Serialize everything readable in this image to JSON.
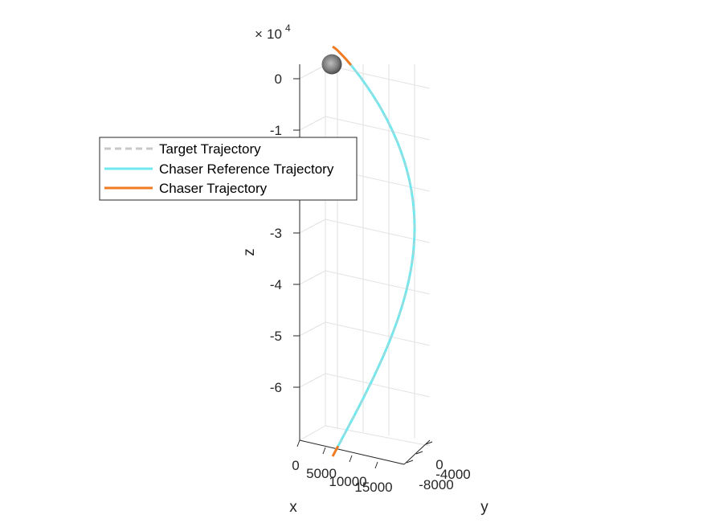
{
  "chart_data": {
    "type": "line",
    "projection": "3d",
    "title": "",
    "xlabel": "x",
    "ylabel": "y",
    "zlabel": "z",
    "z_exponent_label": "10",
    "z_exponent_power": "4",
    "z_exponent_prefix": "×",
    "x_ticks": [
      "0",
      "5000",
      "10000",
      "15000"
    ],
    "y_ticks": [
      "0",
      "-4000",
      "-8000"
    ],
    "z_ticks": [
      "0",
      "-1",
      "-2",
      "-3",
      "-4",
      "-5",
      "-6"
    ],
    "grid": true,
    "legend": {
      "placement": "left",
      "entries": [
        {
          "label": "Target Trajectory",
          "color": "#c8c8c8",
          "style": "dashed"
        },
        {
          "label": "Chaser Reference Trajectory",
          "color": "#6fe9ef",
          "style": "solid"
        },
        {
          "label": "Chaser Trajectory",
          "color": "#ef7b22",
          "style": "solid"
        }
      ]
    },
    "series": [
      {
        "name": "Chaser Reference Trajectory",
        "x": [
          200,
          900,
          2200,
          3800,
          5400,
          6900,
          8200,
          9300,
          10200,
          11000,
          11700,
          12300,
          12800,
          13200,
          13400
        ],
        "y": [
          1500,
          1200,
          600,
          -300,
          -1300,
          -2400,
          -3400,
          -4300,
          -5000,
          -5600,
          -6100,
          -6500,
          -6800,
          -7000,
          -7100
        ],
        "z": [
          500,
          -3000,
          -8000,
          -14000,
          -20000,
          -26000,
          -32000,
          -38000,
          -44000,
          -50000,
          -55000,
          -60000,
          -64000,
          -67000,
          -69000
        ]
      },
      {
        "name": "Chaser Trajectory",
        "segments": [
          {
            "x": [
              0,
              400,
              900
            ],
            "y": [
              1700,
              1450,
              1200
            ],
            "z": [
              2000,
              1000,
              -300
            ]
          },
          {
            "x": [
              13000,
              13300,
              13500
            ],
            "y": [
              -6900,
              -7050,
              -7150
            ],
            "z": [
              -68000,
              -69000,
              -69600
            ]
          }
        ]
      }
    ],
    "markers": [
      {
        "name": "sphere",
        "x": 0,
        "y": 1600,
        "z": 500,
        "color": "#7a7a7a"
      }
    ]
  }
}
